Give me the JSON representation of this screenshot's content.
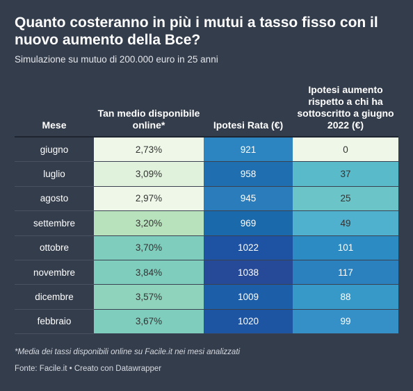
{
  "title": "Quanto costeranno in più i mutui a tasso fisso con il nuovo aumento della Bce?",
  "subtitle": "Simulazione su mutuo di 200.000 euro in 25 anni",
  "footnote": "*Media dei tassi disponibili online su Facile.it nei mesi analizzati",
  "credit": "Fonte: Facile.it • Creato con Datawrapper",
  "chart_data": {
    "type": "table",
    "columns": [
      "Mese",
      "Tan medio disponibile online*",
      "Ipotesi Rata (€)",
      "Ipotesi aumento rispetto a chi ha sottoscritto a giugno 2022 (€)"
    ],
    "rows": [
      {
        "mese": "giugno",
        "tan": "2,73%",
        "rata": "921",
        "aumento": "0"
      },
      {
        "mese": "luglio",
        "tan": "3,09%",
        "rata": "958",
        "aumento": "37"
      },
      {
        "mese": "agosto",
        "tan": "2,97%",
        "rata": "945",
        "aumento": "25"
      },
      {
        "mese": "settembre",
        "tan": "3,20%",
        "rata": "969",
        "aumento": "49"
      },
      {
        "mese": "ottobre",
        "tan": "3,70%",
        "rata": "1022",
        "aumento": "101"
      },
      {
        "mese": "novembre",
        "tan": "3,84%",
        "rata": "1038",
        "aumento": "117"
      },
      {
        "mese": "dicembre",
        "tan": "3,57%",
        "rata": "1009",
        "aumento": "88"
      },
      {
        "mese": "febbraio",
        "tan": "3,67%",
        "rata": "1020",
        "aumento": "99"
      }
    ],
    "cell_colors": {
      "tan": [
        "#eff8e8",
        "#e0f2dc",
        "#eff8e8",
        "#b7e2bb",
        "#7fcdbd",
        "#7fcdbd",
        "#8fd3bd",
        "#7fcdbd"
      ],
      "rata": [
        "#2c85c0",
        "#1f6fb0",
        "#2a7dba",
        "#1a69ab",
        "#1e52a2",
        "#264a98",
        "#1c5ea8",
        "#1e55a3"
      ],
      "aumento": [
        "#eff8e8",
        "#59bac9",
        "#6bc4c8",
        "#50b1cf",
        "#2b8bc2",
        "#2b81be",
        "#3699c8",
        "#3490c6"
      ]
    },
    "cell_text_colors": {
      "tan": [
        "#333333",
        "#333333",
        "#333333",
        "#333333",
        "#333333",
        "#333333",
        "#333333",
        "#333333"
      ],
      "rata": [
        "#ffffff",
        "#ffffff",
        "#ffffff",
        "#ffffff",
        "#ffffff",
        "#ffffff",
        "#ffffff",
        "#ffffff"
      ],
      "aumento": [
        "#333333",
        "#333333",
        "#333333",
        "#333333",
        "#ffffff",
        "#ffffff",
        "#ffffff",
        "#ffffff"
      ]
    }
  }
}
